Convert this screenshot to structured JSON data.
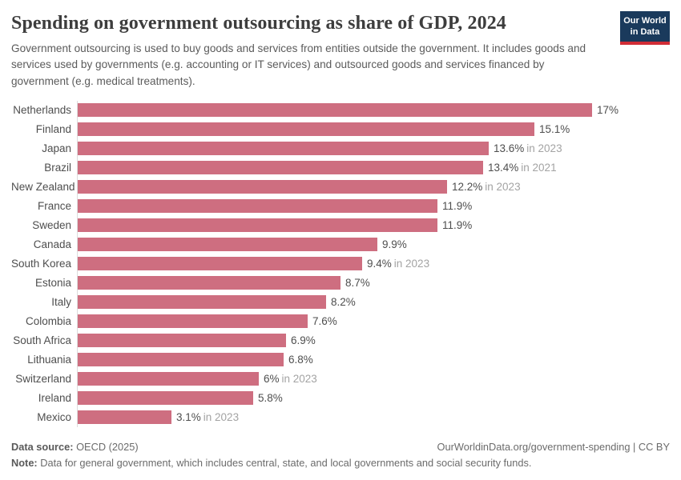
{
  "header": {
    "title": "Spending on government outsourcing as share of GDP, 2024",
    "subtitle": "Government outsourcing is used to buy goods and services from entities outside the government. It includes goods and services used by governments (e.g. accounting or IT services) and outsourced goods and services financed by government (e.g. medical treatments).",
    "logo": {
      "line1": "Our World",
      "line2": "in Data"
    }
  },
  "chart_data": {
    "type": "bar",
    "orientation": "horizontal",
    "title": "Spending on government outsourcing as share of GDP, 2024",
    "unit": "%",
    "xlim": [
      0,
      17
    ],
    "grid": false,
    "bar_color": "#ce6e80",
    "categories": [
      "Netherlands",
      "Finland",
      "Japan",
      "Brazil",
      "New Zealand",
      "France",
      "Sweden",
      "Canada",
      "South Korea",
      "Estonia",
      "Italy",
      "Colombia",
      "South Africa",
      "Lithuania",
      "Switzerland",
      "Ireland",
      "Mexico"
    ],
    "values": [
      17,
      15.1,
      13.6,
      13.4,
      12.2,
      11.9,
      11.9,
      9.9,
      9.4,
      8.7,
      8.2,
      7.6,
      6.9,
      6.8,
      6,
      5.8,
      3.1
    ],
    "value_labels": [
      "17%",
      "15.1%",
      "13.6%",
      "13.4%",
      "12.2%",
      "11.9%",
      "11.9%",
      "9.9%",
      "9.4%",
      "8.7%",
      "8.2%",
      "7.6%",
      "6.9%",
      "6.8%",
      "6%",
      "5.8%",
      "3.1%"
    ],
    "year_notes": [
      "",
      "",
      "in 2023",
      "in 2021",
      "in 2023",
      "",
      "",
      "",
      "in 2023",
      "",
      "",
      "",
      "",
      "",
      "in 2023",
      "",
      "in 2023"
    ]
  },
  "footer": {
    "source_label": "Data source:",
    "source_value": " OECD (2025)",
    "link": "OurWorldinData.org/government-spending | CC BY",
    "note_label": "Note:",
    "note_value": " Data for general government, which includes central, state, and local governments and social security funds."
  },
  "colors": {
    "bar": "#ce6e80",
    "axis_line": "#dcdcdc",
    "logo_navy": "#1a3a5c",
    "logo_red": "#d12d36",
    "title_text": "#3d3d3d",
    "subtitle_text": "#5b5b5b",
    "label_text": "#4e4e4e",
    "year_note_text": "#a3a3a3",
    "footer_text": "#6b6b6b"
  }
}
